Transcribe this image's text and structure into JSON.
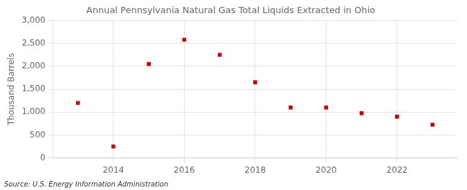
{
  "chart_data": {
    "type": "scatter",
    "title": "Annual Pennsylvania Natural Gas Total Liquids Extracted in Ohio",
    "y_label": "Thousand Barrels",
    "annotations": [
      "Source: U.S. Energy Information Administration"
    ],
    "x": [
      2013,
      2014,
      2015,
      2016,
      2017,
      2018,
      2019,
      2020,
      2021,
      2022,
      2023
    ],
    "values": [
      1200,
      250,
      2050,
      2580,
      2250,
      1650,
      1100,
      1100,
      975,
      900,
      725
    ],
    "color": "#cc0000",
    "marker": "square",
    "xlim": [
      2012.3,
      2023.7
    ],
    "xticks": [
      2014,
      2016,
      2018,
      2020,
      2022
    ],
    "ylim": [
      0,
      3000
    ],
    "yticks": [
      0,
      500,
      {
        "value": 1000,
        "label": "1,000"
      },
      {
        "value": 1500,
        "label": "1,500"
      },
      {
        "value": 2000,
        "label": "2,000"
      },
      {
        "value": 2500,
        "label": "2,500"
      },
      {
        "value": 3000,
        "label": "3,000"
      }
    ],
    "grid": true
  }
}
